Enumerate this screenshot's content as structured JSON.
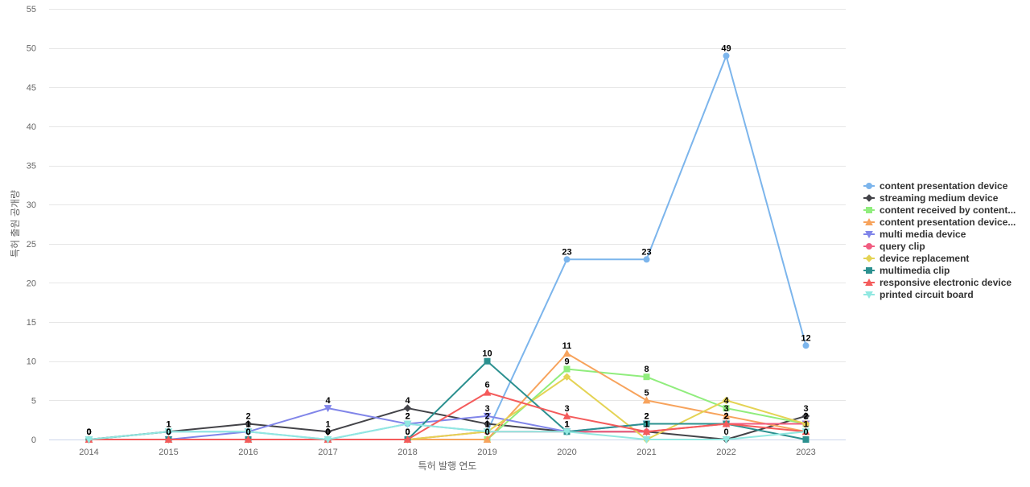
{
  "chart_data": {
    "type": "line",
    "title": "",
    "xlabel": "특허 발행 연도",
    "ylabel": "특허 출원 공개량",
    "x": [
      "2014",
      "2015",
      "2016",
      "2017",
      "2018",
      "2019",
      "2020",
      "2021",
      "2022",
      "2023"
    ],
    "ylim": [
      0,
      55
    ],
    "yticks": [
      0,
      5,
      10,
      15,
      20,
      25,
      30,
      35,
      40,
      45,
      50,
      55
    ],
    "grid": true,
    "legend_position": "right",
    "series": [
      {
        "name": "content presentation device",
        "color": "#7cb5ec",
        "marker": "circle",
        "values": [
          0,
          1,
          1,
          0,
          2,
          1,
          23,
          23,
          49,
          12
        ],
        "labeled": true
      },
      {
        "name": "streaming medium device",
        "color": "#434348",
        "marker": "diamond",
        "values": [
          0,
          1,
          2,
          1,
          4,
          2,
          1,
          1,
          0,
          3
        ],
        "labeled": true
      },
      {
        "name": "content received by content...",
        "color": "#90ed7d",
        "marker": "square",
        "values": [
          0,
          0,
          0,
          0,
          0,
          0,
          9,
          8,
          4,
          2
        ],
        "labeled": true
      },
      {
        "name": "content presentation device...",
        "color": "#f7a35c",
        "marker": "triangle",
        "values": [
          0,
          0,
          0,
          0,
          0,
          0,
          11,
          5,
          3,
          1
        ],
        "labeled": true
      },
      {
        "name": "multi media device",
        "color": "#8085e9",
        "marker": "triangle-down",
        "values": [
          0,
          0,
          1,
          4,
          2,
          3,
          1,
          2,
          2,
          2
        ],
        "labeled": true
      },
      {
        "name": "query clip",
        "color": "#f15c80",
        "marker": "circle",
        "values": [
          0,
          0,
          0,
          0,
          0,
          1,
          1,
          1,
          2,
          2
        ],
        "labeled": false
      },
      {
        "name": "device replacement",
        "color": "#e4d354",
        "marker": "diamond",
        "values": [
          0,
          0,
          0,
          0,
          0,
          1,
          8,
          0,
          5,
          2
        ],
        "labeled": false
      },
      {
        "name": "multimedia clip",
        "color": "#2b908f",
        "marker": "square",
        "values": [
          0,
          0,
          0,
          0,
          0,
          10,
          1,
          2,
          2,
          0
        ],
        "labeled": true
      },
      {
        "name": "responsive electronic device",
        "color": "#f45b5b",
        "marker": "triangle",
        "values": [
          0,
          0,
          0,
          0,
          0,
          6,
          3,
          1,
          2,
          1
        ],
        "labeled": true
      },
      {
        "name": "printed circuit board",
        "color": "#91e8e1",
        "marker": "triangle-down",
        "values": [
          0,
          1,
          1,
          0,
          2,
          1,
          1,
          0,
          0,
          1
        ],
        "labeled": false
      }
    ]
  }
}
